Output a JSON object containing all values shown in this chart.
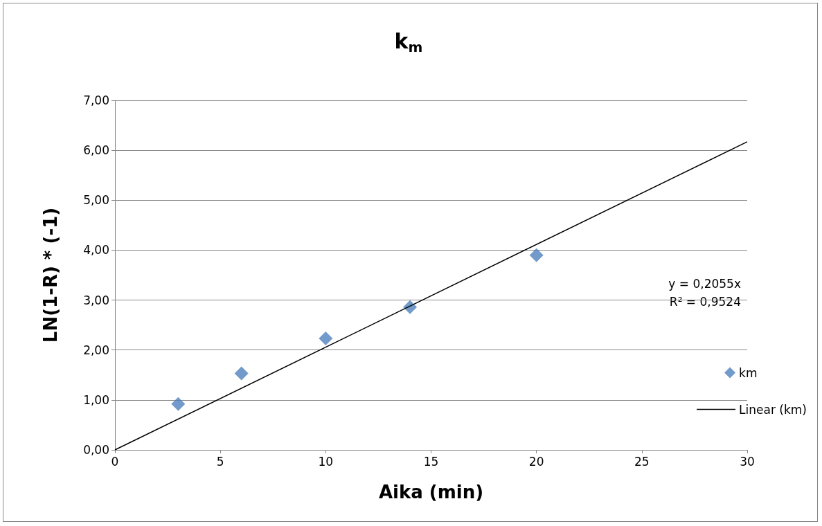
{
  "chart_data": {
    "type": "scatter",
    "title": "k$_{m}$",
    "xlabel": "Aika (min)",
    "ylabel": "LN(1-R) * (-1)",
    "xlim": [
      0,
      30
    ],
    "xticks": [
      0,
      5,
      10,
      15,
      20,
      25,
      30
    ],
    "ylim": [
      0,
      7
    ],
    "yticks": [
      {
        "value": 0,
        "label": "0,00"
      },
      {
        "value": 1,
        "label": "1,00"
      },
      {
        "value": 2,
        "label": "2,00"
      },
      {
        "value": 3,
        "label": "3,00"
      },
      {
        "value": 4,
        "label": "4,00"
      },
      {
        "value": 5,
        "label": "5,00"
      },
      {
        "value": 6,
        "label": "6,00"
      },
      {
        "value": 7,
        "label": "7,00"
      }
    ],
    "series": [
      {
        "name": "km",
        "color": "#4f81bd",
        "marker": "diamond",
        "x": [
          3,
          6,
          10,
          14,
          20
        ],
        "values": [
          0.92,
          1.53,
          2.23,
          2.86,
          3.9
        ]
      },
      {
        "name": "Linear (km)",
        "type": "line",
        "color": "#000000",
        "marker": "none",
        "line_style": "solid",
        "x": [
          0,
          30
        ],
        "values": [
          0,
          6.17
        ]
      }
    ],
    "annotations": [
      "y = 0,2055x",
      "R² = 0,9524"
    ],
    "grid": "y",
    "legend": "right"
  }
}
